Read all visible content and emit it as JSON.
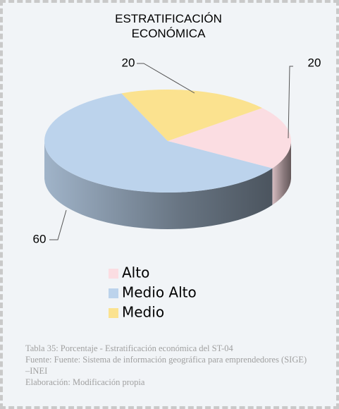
{
  "chart_data": {
    "type": "pie",
    "title": "ESTRATIFICACIÓN ECONÓMICA",
    "categories": [
      "Alto",
      "Medio Alto",
      "Medio"
    ],
    "values": [
      20,
      60,
      20
    ],
    "colors": [
      "#fbdde2",
      "#bcd3ec",
      "#fbe28f"
    ],
    "legend": "bottom",
    "caption": [
      "Tabla 35: Porcentaje -  Estratificación  económica del ST-04",
      "Fuente: Fuente: Sistema  de información geográfica para emprendedores (SIGE) –INEI",
      "Elaboración: Modificación  propia"
    ]
  }
}
